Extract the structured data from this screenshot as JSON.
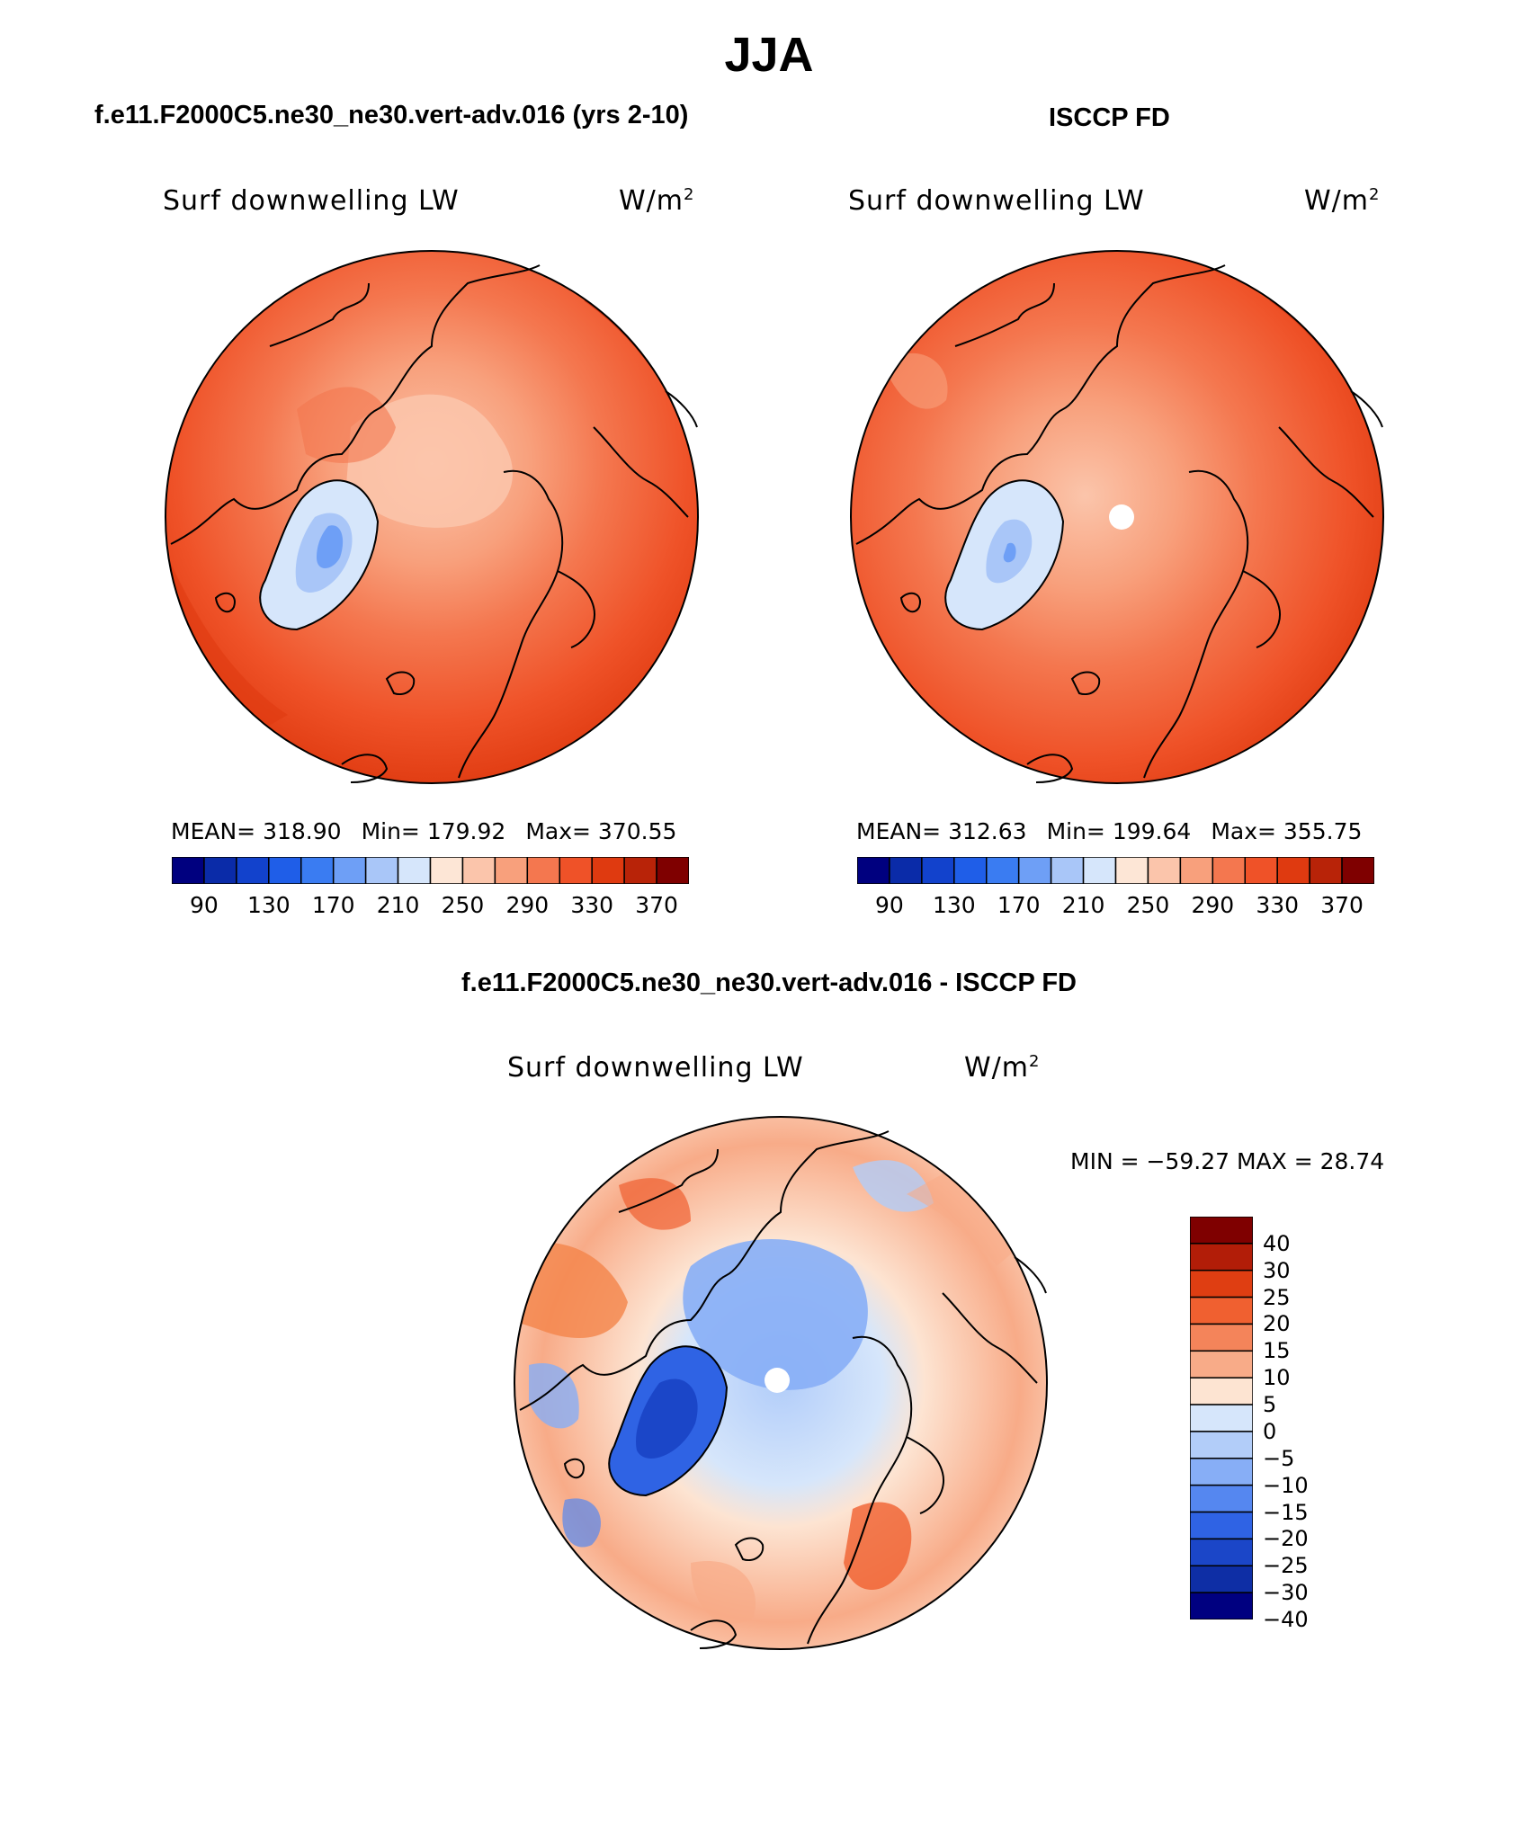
{
  "figure": {
    "title": "JJA",
    "difference_title": "f.e11.F2000C5.ne30_ne30.vert-adv.016 - ISCCP FD"
  },
  "panels": {
    "model": {
      "case_title": "f.e11.F2000C5.ne30_ne30.vert-adv.016 (yrs 2-10)",
      "variable": "Surf downwelling LW",
      "units": "W/m",
      "units_exp": "2",
      "mean_label": "MEAN=",
      "mean": "318.90",
      "min_label": "Min=",
      "min": "179.92",
      "max_label": "Max=",
      "max": "370.55"
    },
    "obs": {
      "case_title": "ISCCP FD",
      "variable": "Surf downwelling LW",
      "units": "W/m",
      "units_exp": "2",
      "mean_label": "MEAN=",
      "mean": "312.63",
      "min_label": "Min=",
      "min": "199.64",
      "max_label": "Max=",
      "max": "355.75"
    },
    "diff": {
      "variable": "Surf downwelling LW",
      "units": "W/m",
      "units_exp": "2",
      "minmax_text": "MIN = −59.27 MAX =   28.74"
    }
  },
  "colorbars": {
    "main": {
      "colors": [
        "#00007f",
        "#0a2ba8",
        "#1242cc",
        "#1f5ee8",
        "#3a7cf2",
        "#6e9ff6",
        "#a9c6f8",
        "#d6e6fb",
        "#fde6d6",
        "#fbc5ab",
        "#f8a07c",
        "#f4774f",
        "#ef5228",
        "#df3a10",
        "#b82308",
        "#7f0000"
      ],
      "tick_labels": [
        "90",
        "130",
        "170",
        "210",
        "250",
        "290",
        "330",
        "370"
      ],
      "tick_boundary_index": [
        2,
        4,
        6,
        8,
        10,
        12,
        14,
        16
      ]
    },
    "diff": {
      "colors": [
        "#7f0000",
        "#b21d08",
        "#df3e12",
        "#f06030",
        "#f4845a",
        "#f8ab88",
        "#fde4d2",
        "#d6e6fb",
        "#b2cdf9",
        "#87aef6",
        "#5587f0",
        "#2f63e4",
        "#1b46c8",
        "#0e2ea5",
        "#000080"
      ],
      "tick_labels": [
        "40",
        "30",
        "25",
        "20",
        "15",
        "10",
        "5",
        "0",
        "−5",
        "−10",
        "−15",
        "−20",
        "−25",
        "−30",
        "−40"
      ]
    }
  },
  "maps": {
    "model": {
      "projection": "north-polar-stereographic",
      "region": "Arctic",
      "field": "surface downwelling longwave (model)"
    },
    "obs": {
      "projection": "north-polar-stereographic",
      "region": "Arctic",
      "field": "surface downwelling longwave (ISCCP FD)"
    },
    "diff": {
      "projection": "north-polar-stereographic",
      "region": "Arctic",
      "field": "model minus ISCCP FD"
    }
  }
}
